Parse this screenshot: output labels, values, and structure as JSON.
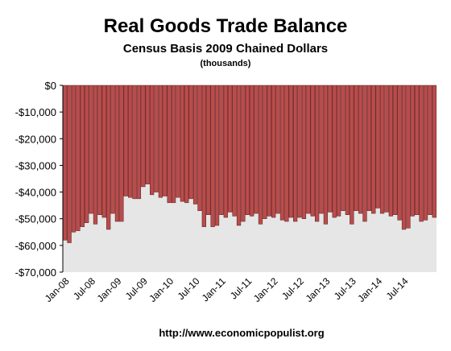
{
  "chart_data": {
    "type": "bar",
    "title": "Real  Goods Trade Balance",
    "subtitle": "Census Basis 2009 Chained Dollars",
    "unit_note": "(thousands)",
    "footer": "http://www.economicpopulist.org",
    "xlabel": "",
    "ylabel": "",
    "ylim": [
      -70000,
      0
    ],
    "y_ticks": [
      "$0",
      "-$10,000",
      "-$20,000",
      "-$30,000",
      "-$40,000",
      "-$50,000",
      "-$60,000",
      "-$70,000"
    ],
    "y_tick_values": [
      0,
      -10000,
      -20000,
      -30000,
      -40000,
      -50000,
      -60000,
      -70000
    ],
    "x_tick_labels": [
      "Jan-08",
      "Jul-08",
      "Jan-09",
      "Jul-09",
      "Jan-10",
      "Jul-10",
      "Jan-11",
      "Jul-11",
      "Jan-12",
      "Jul-12",
      "Jan-13",
      "Jul-13",
      "Jan-14",
      "Jul-14"
    ],
    "x_tick_index": [
      0,
      6,
      12,
      18,
      24,
      30,
      36,
      42,
      48,
      54,
      60,
      66,
      72,
      78
    ],
    "bar_color": "#b94c4c",
    "bar_edge": "#5a1a1a",
    "plot_background": "#e6e6e6",
    "grid": false,
    "values": [
      -58000,
      -59000,
      -55000,
      -54500,
      -53000,
      -51500,
      -48000,
      -52000,
      -48500,
      -49500,
      -54000,
      -48000,
      -51000,
      -51000,
      -41500,
      -42000,
      -42500,
      -42500,
      -38000,
      -37000,
      -41000,
      -40000,
      -42000,
      -41500,
      -44000,
      -44000,
      -42000,
      -43500,
      -44000,
      -42500,
      -44500,
      -47000,
      -53000,
      -48500,
      -53000,
      -52500,
      -48500,
      -49500,
      -47500,
      -49000,
      -52500,
      -51000,
      -48500,
      -49000,
      -48000,
      -52000,
      -50000,
      -49000,
      -49500,
      -48000,
      -50500,
      -51000,
      -49500,
      -51000,
      -49500,
      -50000,
      -48000,
      -49000,
      -51000,
      -48000,
      -52000,
      -47500,
      -49500,
      -49000,
      -47000,
      -48500,
      -52000,
      -47000,
      -48000,
      -51000,
      -47000,
      -48000,
      -46000,
      -48000,
      -47500,
      -49000,
      -48500,
      -50500,
      -54000,
      -53500,
      -49000,
      -48500,
      -51000,
      -50500,
      -48500,
      -49500
    ]
  }
}
